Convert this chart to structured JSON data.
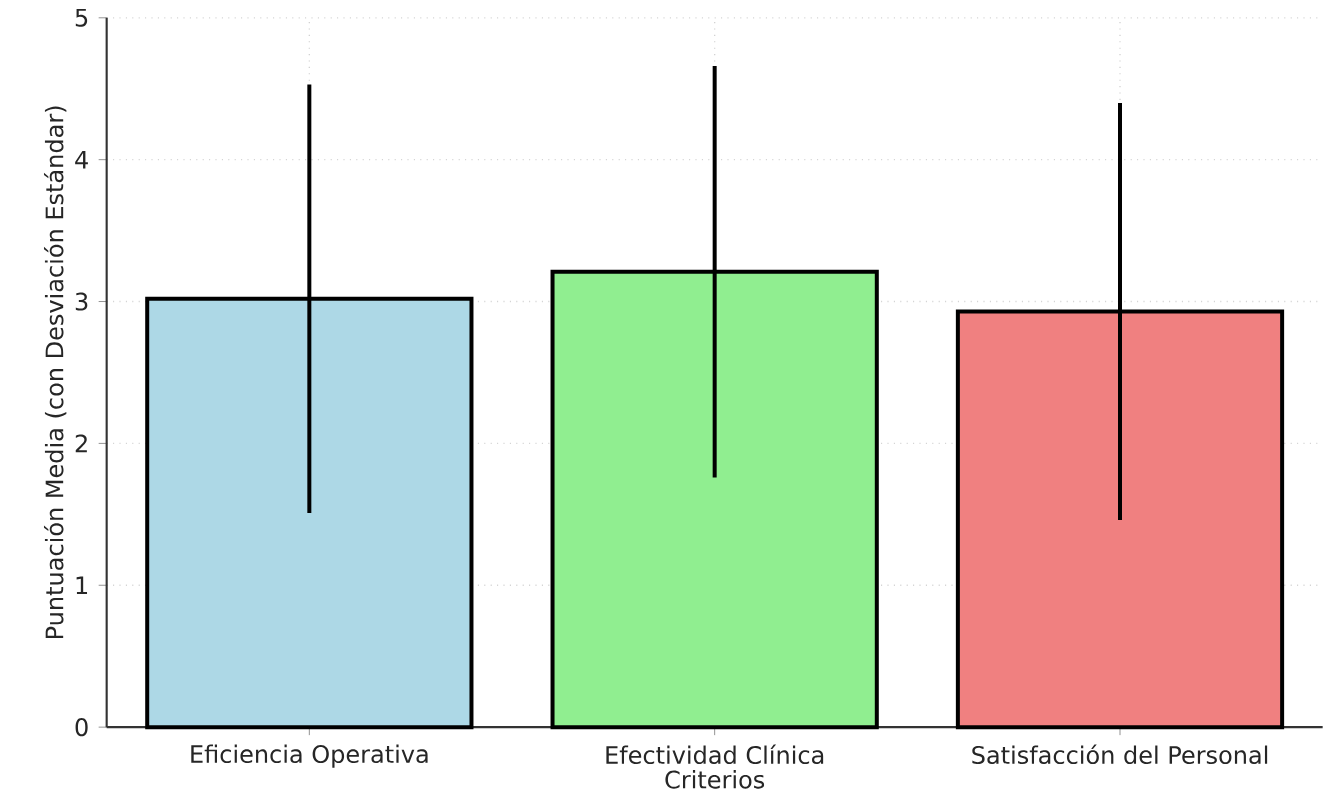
{
  "chart_data": {
    "type": "bar",
    "xlabel": "Criterios",
    "ylabel": "Puntuación Media (con Desviación Estándar)",
    "categories": [
      "Eficiencia Operativa",
      "Efectividad Clínica",
      "Satisfacción del Personal"
    ],
    "values": [
      3.02,
      3.21,
      2.93
    ],
    "errors": [
      1.51,
      1.45,
      1.47
    ],
    "colors": [
      "#add8e6",
      "#90ee90",
      "#f08080"
    ],
    "ylim": [
      0,
      5
    ],
    "yticks": [
      0,
      1,
      2,
      3,
      4,
      5
    ],
    "grid": true
  }
}
